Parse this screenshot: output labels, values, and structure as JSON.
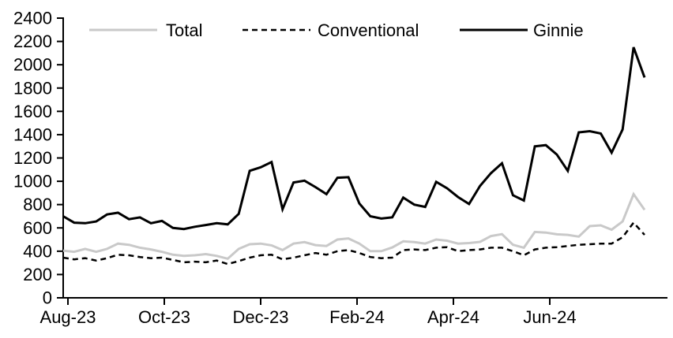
{
  "chart_data": {
    "type": "line",
    "title": "",
    "background_color": "#ffffff",
    "axis_color": "#000000",
    "text_color": "#000000",
    "grid": false,
    "legend_position": "top",
    "x_frequency": "weekly",
    "xtick_labels": [
      "Aug-23",
      "Oct-23",
      "Dec-23",
      "Feb-24",
      "Apr-24",
      "Jun-24"
    ],
    "ytick_labels": [
      "0",
      "200",
      "400",
      "600",
      "800",
      "1000",
      "1200",
      "1400",
      "1600",
      "1800",
      "2000",
      "2200",
      "2400"
    ],
    "ylim": [
      0,
      2400
    ],
    "ytick_step": 200,
    "series": [
      {
        "name": "Total",
        "color": "#c9c9c9",
        "dash": "solid",
        "values": [
          405,
          395,
          420,
          395,
          420,
          465,
          455,
          430,
          415,
          395,
          370,
          360,
          365,
          375,
          360,
          335,
          420,
          460,
          465,
          450,
          410,
          465,
          478,
          452,
          445,
          500,
          510,
          465,
          400,
          400,
          432,
          485,
          478,
          465,
          500,
          490,
          465,
          470,
          480,
          530,
          546,
          455,
          430,
          565,
          560,
          545,
          540,
          525,
          615,
          622,
          585,
          655,
          890,
          755
        ]
      },
      {
        "name": "Conventional",
        "color": "#000000",
        "dash": "dashed",
        "values": [
          345,
          330,
          340,
          320,
          340,
          370,
          365,
          350,
          340,
          345,
          325,
          305,
          310,
          305,
          320,
          290,
          315,
          345,
          365,
          370,
          330,
          345,
          365,
          385,
          370,
          400,
          410,
          385,
          350,
          340,
          345,
          410,
          415,
          410,
          430,
          435,
          400,
          410,
          415,
          430,
          430,
          400,
          365,
          415,
          430,
          435,
          445,
          455,
          460,
          465,
          465,
          520,
          645,
          540
        ]
      },
      {
        "name": "Ginnie",
        "color": "#000000",
        "dash": "solid",
        "values": [
          700,
          645,
          640,
          655,
          715,
          730,
          675,
          690,
          640,
          660,
          600,
          590,
          610,
          625,
          640,
          630,
          720,
          1090,
          1120,
          1165,
          760,
          990,
          1005,
          950,
          890,
          1030,
          1035,
          810,
          700,
          680,
          690,
          860,
          800,
          780,
          995,
          940,
          865,
          805,
          960,
          1070,
          1155,
          880,
          835,
          1300,
          1310,
          1230,
          1090,
          1420,
          1430,
          1410,
          1245,
          1445,
          2150,
          1890
        ]
      }
    ]
  }
}
